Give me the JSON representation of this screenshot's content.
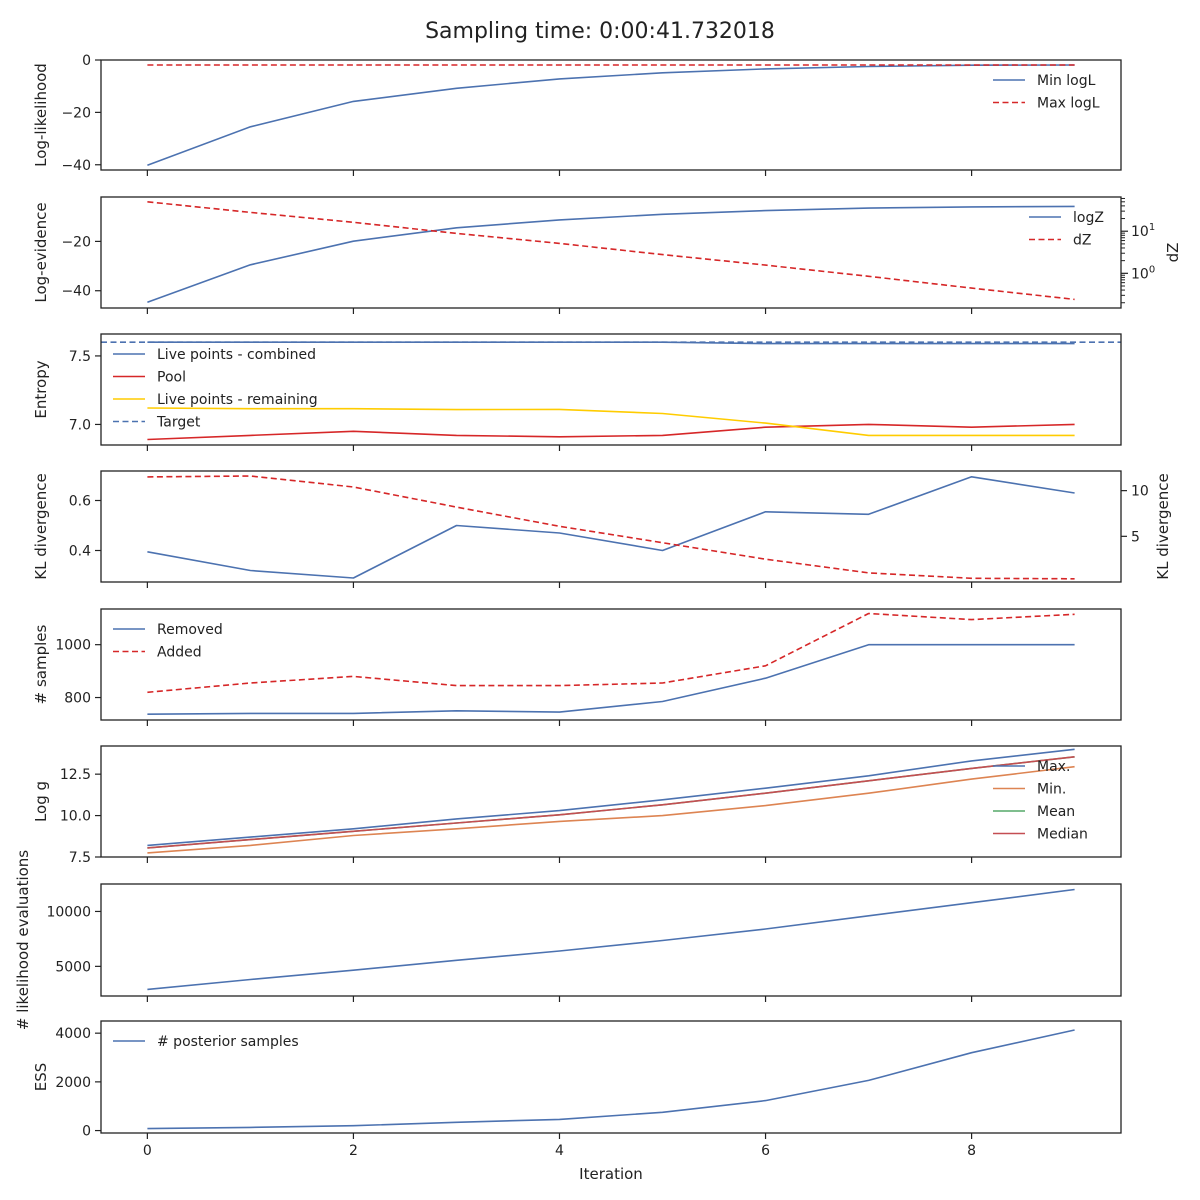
{
  "figure": {
    "title": "Sampling time: 0:00:41.732018",
    "xlabel": "Iteration",
    "x_ticks": [
      0,
      2,
      4,
      6,
      8
    ]
  },
  "colors": {
    "blue": "#4c72b0",
    "red": "#d62728",
    "yellow": "#ffcc00",
    "orange": "#dd8452",
    "green": "#55a868",
    "rose": "#c44e52"
  },
  "chart_data": [
    {
      "type": "line",
      "ylabel": "Log-likelihood",
      "x": [
        0,
        1,
        2,
        3,
        4,
        5,
        6,
        7,
        8,
        9
      ],
      "xlim": [
        -0.45,
        9.45
      ],
      "ylim": [
        -42,
        0
      ],
      "yticks": [
        0,
        -20,
        -40
      ],
      "ytick_labels": [
        "0",
        "−20",
        "−40"
      ],
      "series": [
        {
          "name": "Min logL",
          "color": "blue",
          "dash": false,
          "values": [
            -40.2,
            -25.5,
            -15.8,
            -10.8,
            -7.2,
            -4.9,
            -3.4,
            -2.5,
            -2.0,
            -1.9
          ]
        },
        {
          "name": "Max logL",
          "color": "red",
          "dash": true,
          "values": [
            -1.9,
            -1.9,
            -1.9,
            -1.9,
            -1.9,
            -1.9,
            -1.9,
            -1.9,
            -1.9,
            -1.9
          ]
        }
      ],
      "legend": "right"
    },
    {
      "type": "line",
      "ylabel": "Log-evidence",
      "ylabel_right": "dZ",
      "x": [
        0,
        1,
        2,
        3,
        4,
        5,
        6,
        7,
        8,
        9
      ],
      "xlim": [
        -0.45,
        9.45
      ],
      "ylim": [
        -47,
        -2
      ],
      "yticks": [
        -20,
        -40
      ],
      "ytick_labels": [
        "−20",
        "−40"
      ],
      "right_axis": {
        "scale": "log",
        "lim": [
          0.15,
          65
        ],
        "major_ticks": [
          1,
          10
        ],
        "major_labels": [
          "10",
          "10"
        ],
        "exponents": [
          "0",
          "1"
        ],
        "minor_ticks": [
          0.2,
          0.3,
          0.4,
          0.5,
          0.6,
          0.7,
          0.8,
          0.9,
          2,
          3,
          4,
          5,
          6,
          7,
          8,
          9,
          20,
          30,
          40,
          50,
          60
        ]
      },
      "series": [
        {
          "name": "logZ",
          "color": "blue",
          "dash": false,
          "axis": "left",
          "values": [
            -44.7,
            -29.5,
            -19.9,
            -14.5,
            -11.3,
            -9.0,
            -7.5,
            -6.5,
            -6.0,
            -5.8
          ]
        },
        {
          "name": "dZ",
          "color": "red",
          "dash": true,
          "axis": "right",
          "values": [
            50,
            28,
            16.3,
            8.9,
            5.15,
            2.79,
            1.57,
            0.85,
            0.445,
            0.24
          ]
        }
      ],
      "legend": "right"
    },
    {
      "type": "line",
      "ylabel": "Entropy",
      "x": [
        0,
        1,
        2,
        3,
        4,
        5,
        6,
        7,
        8,
        9
      ],
      "xlim": [
        -0.45,
        9.45
      ],
      "ylim": [
        6.85,
        7.66
      ],
      "yticks": [
        7.5,
        7.0
      ],
      "ytick_labels": [
        "7.5",
        "7.0"
      ],
      "hline": {
        "name": "Target",
        "value": 7.6,
        "color": "blue"
      },
      "series": [
        {
          "name": "Live points - combined",
          "color": "blue",
          "dash": false,
          "values": [
            7.6,
            7.6,
            7.6,
            7.6,
            7.6,
            7.6,
            7.59,
            7.59,
            7.59,
            7.59
          ]
        },
        {
          "name": "Pool",
          "color": "red",
          "dash": false,
          "values": [
            6.89,
            6.92,
            6.95,
            6.92,
            6.91,
            6.92,
            6.98,
            7.0,
            6.98,
            7.0
          ]
        },
        {
          "name": "Live points - remaining",
          "color": "yellow",
          "dash": false,
          "values": [
            7.12,
            7.115,
            7.115,
            7.108,
            7.11,
            7.08,
            7.01,
            6.92,
            6.92,
            6.92
          ]
        }
      ],
      "legend": "left"
    },
    {
      "type": "line",
      "ylabel": "KL divergence",
      "ylabel_right": "KL divergence",
      "x": [
        0,
        1,
        2,
        3,
        4,
        5,
        6,
        7,
        8,
        9
      ],
      "xlim": [
        -0.45,
        9.45
      ],
      "ylim": [
        0.274,
        0.718
      ],
      "yticks": [
        0.6,
        0.4
      ],
      "ytick_labels": [
        "0.6",
        "0.4"
      ],
      "right_axis": {
        "scale": "linear",
        "lim": [
          0,
          12.15
        ],
        "ticks": [
          10,
          5
        ],
        "labels": [
          "10",
          "5"
        ]
      },
      "series": [
        {
          "name": "",
          "color": "blue",
          "dash": false,
          "axis": "left",
          "values": [
            0.395,
            0.32,
            0.29,
            0.5,
            0.47,
            0.4,
            0.555,
            0.545,
            0.695,
            0.63
          ]
        },
        {
          "name": "",
          "color": "red",
          "dash": true,
          "axis": "right",
          "values": [
            11.5,
            11.6,
            10.4,
            8.2,
            6.1,
            4.3,
            2.5,
            1.0,
            0.4,
            0.35
          ]
        }
      ]
    },
    {
      "type": "line",
      "ylabel": "# samples",
      "x": [
        0,
        1,
        2,
        3,
        4,
        5,
        6,
        7,
        8,
        9
      ],
      "xlim": [
        -0.45,
        9.45
      ],
      "ylim": [
        715,
        1135
      ],
      "yticks": [
        1000,
        800
      ],
      "ytick_labels": [
        "1000",
        "800"
      ],
      "series": [
        {
          "name": "Removed",
          "color": "blue",
          "dash": false,
          "values": [
            737,
            740,
            740,
            750,
            745,
            785,
            873,
            1000,
            1000,
            1000
          ]
        },
        {
          "name": "Added",
          "color": "red",
          "dash": true,
          "values": [
            820,
            855,
            880,
            845,
            845,
            855,
            920,
            1118,
            1095,
            1115
          ]
        }
      ],
      "legend": "left"
    },
    {
      "type": "line",
      "ylabel": "Log g",
      "x": [
        0,
        1,
        2,
        3,
        4,
        5,
        6,
        7,
        8,
        9
      ],
      "xlim": [
        -0.45,
        9.45
      ],
      "ylim": [
        7.5,
        14.2
      ],
      "yticks": [
        12.5,
        10.0,
        7.5
      ],
      "ytick_labels": [
        "12.5",
        "10.0",
        "7.5"
      ],
      "series": [
        {
          "name": "Max.",
          "color": "blue",
          "dash": false,
          "values": [
            8.2,
            8.7,
            9.2,
            9.8,
            10.3,
            10.95,
            11.65,
            12.4,
            13.3,
            14.0
          ]
        },
        {
          "name": "Min.",
          "color": "orange",
          "dash": false,
          "values": [
            7.75,
            8.2,
            8.8,
            9.2,
            9.65,
            10.0,
            10.6,
            11.35,
            12.2,
            12.95
          ]
        },
        {
          "name": "Mean",
          "color": "green",
          "dash": false,
          "values": [
            8.05,
            8.55,
            9.05,
            9.55,
            10.05,
            10.65,
            11.35,
            12.1,
            12.85,
            13.55
          ]
        },
        {
          "name": "Median",
          "color": "rose",
          "dash": false,
          "values": [
            8.05,
            8.55,
            9.05,
            9.55,
            10.05,
            10.65,
            11.35,
            12.1,
            12.85,
            13.55
          ]
        }
      ],
      "legend": "right"
    },
    {
      "type": "line",
      "ylabel": "# likelihood evaluations",
      "x": [
        0,
        1,
        2,
        3,
        4,
        5,
        6,
        7,
        8,
        9
      ],
      "xlim": [
        -0.45,
        9.45
      ],
      "ylim": [
        2300,
        12500
      ],
      "yticks": [
        10000,
        5000
      ],
      "ytick_labels": [
        "10000",
        "5000"
      ],
      "series": [
        {
          "name": "",
          "color": "blue",
          "dash": false,
          "values": [
            2900,
            3800,
            4650,
            5550,
            6400,
            7350,
            8400,
            9600,
            10800,
            12000
          ]
        }
      ]
    },
    {
      "type": "line",
      "ylabel": "ESS",
      "x": [
        0,
        1,
        2,
        3,
        4,
        5,
        6,
        7,
        8,
        9
      ],
      "xlim": [
        -0.45,
        9.45
      ],
      "ylim": [
        -100,
        4500
      ],
      "yticks": [
        4000,
        2000,
        0
      ],
      "ytick_labels": [
        "4000",
        "2000",
        "0"
      ],
      "series": [
        {
          "name": "# posterior samples",
          "color": "blue",
          "dash": false,
          "values": [
            80,
            130,
            200,
            340,
            460,
            750,
            1230,
            2060,
            3200,
            4130
          ]
        }
      ],
      "legend": "left"
    }
  ]
}
